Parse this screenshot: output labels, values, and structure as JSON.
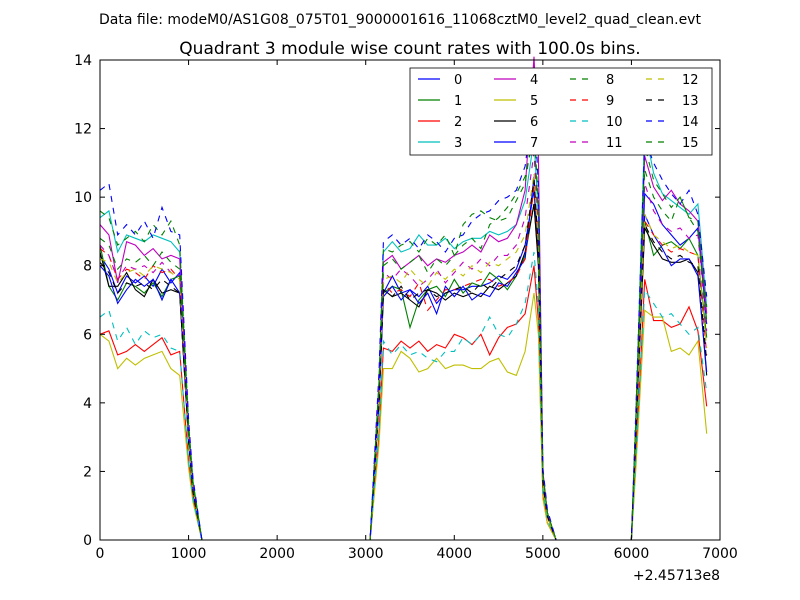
{
  "suptitle": "Data file: modeM0/AS1G08_075T01_9000001616_11068cztM0_level2_quad_clean.evt",
  "chart_data": {
    "type": "line",
    "title": "Quadrant 3 module wise count rates with 100.0s bins.",
    "xlabel": "",
    "ylabel": "",
    "x_offset_label": "+2.45713e8",
    "xlim": [
      0,
      7000
    ],
    "ylim": [
      0,
      14
    ],
    "x_ticks": [
      "0",
      "1000",
      "2000",
      "3000",
      "4000",
      "5000",
      "6000",
      "7000"
    ],
    "y_ticks": [
      "0",
      "2",
      "4",
      "6",
      "8",
      "10",
      "12",
      "14"
    ],
    "grid": false,
    "legend_position": "top-right",
    "x": [
      0,
      100,
      200,
      300,
      400,
      500,
      600,
      700,
      800,
      900,
      1000,
      1050,
      1150,
      3050,
      3150,
      3200,
      3300,
      3400,
      3500,
      3600,
      3700,
      3800,
      3900,
      4000,
      4100,
      4200,
      4300,
      4400,
      4500,
      4600,
      4700,
      4800,
      4900,
      4950,
      5000,
      5050,
      5150,
      6000,
      6050,
      6150,
      6250,
      6350,
      6450,
      6550,
      6650,
      6750,
      6850
    ],
    "series": [
      {
        "name": "0",
        "color": "#0000ff",
        "style": "solid",
        "values": [
          8.3,
          7.9,
          7.2,
          7.7,
          7.5,
          7.7,
          7.4,
          7.9,
          7.5,
          7.8,
          3.0,
          1.5,
          0,
          0,
          4.1,
          7.2,
          7.7,
          7.2,
          7.3,
          7.1,
          7.4,
          6.9,
          7.2,
          7.3,
          7.3,
          7.4,
          7.4,
          7.5,
          7.7,
          7.6,
          7.9,
          8.6,
          10.2,
          8.3,
          1.7,
          0.7,
          0,
          0,
          3.2,
          10.1,
          9.8,
          9.2,
          8.9,
          8.6,
          8.8,
          9.1,
          6.3
        ]
      },
      {
        "name": "1",
        "color": "#008000",
        "style": "solid",
        "values": [
          8.6,
          7.4,
          7.0,
          7.5,
          7.4,
          7.2,
          7.5,
          7.1,
          7.6,
          7.7,
          2.9,
          1.5,
          0,
          0,
          4.0,
          7.2,
          7.4,
          7.3,
          6.2,
          7.0,
          7.3,
          7.4,
          7.1,
          7.6,
          7.2,
          7.5,
          7.4,
          7.8,
          7.6,
          7.3,
          7.7,
          8.3,
          9.8,
          8.1,
          1.7,
          0.7,
          0,
          0,
          3.1,
          9.3,
          8.3,
          8.6,
          8.7,
          8.5,
          8.8,
          8.3,
          5.9
        ]
      },
      {
        "name": "2",
        "color": "#ff0000",
        "style": "solid",
        "values": [
          6.0,
          6.1,
          5.4,
          5.5,
          5.7,
          5.5,
          5.7,
          5.9,
          5.4,
          5.5,
          2.3,
          1.2,
          0,
          0,
          3.1,
          5.6,
          5.5,
          5.8,
          5.6,
          5.8,
          5.5,
          5.7,
          5.6,
          6.0,
          5.9,
          5.7,
          6.0,
          5.4,
          5.9,
          6.2,
          6.3,
          6.6,
          8.0,
          6.4,
          1.3,
          0.5,
          0,
          0,
          2.3,
          7.6,
          6.4,
          6.4,
          6.2,
          6.3,
          6.8,
          6.1,
          3.9
        ]
      },
      {
        "name": "3",
        "color": "#00bfbf",
        "style": "solid",
        "values": [
          9.4,
          9.6,
          8.4,
          8.9,
          8.8,
          8.7,
          8.9,
          8.8,
          8.7,
          8.4,
          3.3,
          1.7,
          0,
          0,
          4.6,
          8.4,
          8.7,
          8.4,
          8.5,
          8.9,
          8.6,
          8.6,
          8.8,
          8.5,
          8.7,
          8.8,
          8.8,
          9.0,
          8.9,
          9.0,
          9.2,
          9.9,
          11.7,
          9.4,
          1.9,
          0.8,
          0,
          0,
          3.6,
          12.0,
          10.7,
          10.1,
          9.9,
          9.7,
          9.5,
          9.8,
          6.8
        ]
      },
      {
        "name": "4",
        "color": "#bf00bf",
        "style": "solid",
        "values": [
          9.2,
          8.9,
          7.5,
          8.7,
          8.6,
          8.3,
          8.5,
          8.2,
          8.3,
          8.2,
          3.2,
          1.6,
          0,
          0,
          4.5,
          8.1,
          8.3,
          7.9,
          8.1,
          8.3,
          8.0,
          8.2,
          8.1,
          8.3,
          8.4,
          8.6,
          8.4,
          8.9,
          8.7,
          8.8,
          9.2,
          10.2,
          14.1,
          11.2,
          2.0,
          0.8,
          0,
          0,
          3.5,
          11.2,
          10.3,
          9.9,
          10.2,
          9.8,
          9.6,
          9.3,
          6.6
        ]
      },
      {
        "name": "5",
        "color": "#bfbf00",
        "style": "solid",
        "values": [
          6.0,
          5.8,
          5.0,
          5.3,
          5.1,
          5.3,
          5.4,
          5.5,
          5.0,
          4.8,
          2.1,
          1.1,
          0,
          0,
          2.8,
          5.0,
          5.0,
          5.5,
          5.3,
          4.9,
          5.0,
          5.3,
          5.0,
          5.1,
          5.1,
          5.0,
          5.0,
          5.2,
          5.3,
          4.9,
          4.8,
          5.5,
          7.2,
          6.0,
          1.2,
          0.5,
          0,
          0,
          2.1,
          6.7,
          6.5,
          6.5,
          5.5,
          5.6,
          5.4,
          5.8,
          3.1
        ]
      },
      {
        "name": "6",
        "color": "#000000",
        "style": "solid",
        "values": [
          8.4,
          7.4,
          7.4,
          7.8,
          7.3,
          7.1,
          7.6,
          7.2,
          7.3,
          7.2,
          2.9,
          1.4,
          0,
          0,
          4.0,
          7.3,
          7.1,
          7.2,
          7.0,
          6.8,
          7.3,
          7.2,
          7.0,
          7.2,
          7.1,
          7.2,
          7.1,
          7.4,
          7.3,
          7.5,
          7.7,
          8.4,
          9.8,
          8.0,
          1.6,
          0.7,
          0,
          0,
          3.0,
          9.1,
          8.6,
          8.2,
          8.1,
          8.1,
          8.2,
          7.8,
          4.8
        ]
      },
      {
        "name": "7",
        "color": "#0000ff",
        "style": "solid",
        "values": [
          8.0,
          7.7,
          6.9,
          7.3,
          7.6,
          7.4,
          7.6,
          7.0,
          7.6,
          7.2,
          2.9,
          1.5,
          0,
          0,
          4.0,
          7.1,
          7.4,
          7.0,
          7.3,
          6.9,
          7.2,
          6.6,
          7.4,
          7.1,
          7.4,
          7.0,
          7.2,
          7.1,
          7.5,
          7.4,
          7.8,
          8.2,
          10.6,
          8.5,
          1.7,
          0.7,
          0,
          0,
          3.1,
          9.5,
          8.9,
          8.5,
          8.0,
          8.2,
          8.2,
          7.7,
          4.9
        ]
      },
      {
        "name": "8",
        "color": "#008000",
        "style": "dashed",
        "values": [
          9.6,
          9.4,
          8.6,
          8.8,
          9.0,
          8.7,
          9.2,
          8.9,
          9.3,
          8.6,
          3.4,
          1.7,
          0,
          0,
          4.6,
          8.5,
          8.4,
          8.6,
          8.7,
          8.4,
          8.8,
          8.6,
          8.9,
          8.3,
          9.2,
          9.5,
          9.6,
          9.4,
          9.3,
          9.4,
          9.9,
          10.4,
          12.1,
          9.8,
          1.9,
          0.8,
          0,
          0,
          3.6,
          11.5,
          10.5,
          10.1,
          9.7,
          10.0,
          9.4,
          9.3,
          6.8
        ]
      },
      {
        "name": "9",
        "color": "#ff0000",
        "style": "dashed",
        "values": [
          8.5,
          8.3,
          7.6,
          7.9,
          7.8,
          7.6,
          8.0,
          7.8,
          7.9,
          7.6,
          3.0,
          1.5,
          0,
          0,
          4.1,
          7.5,
          7.2,
          7.3,
          7.1,
          7.5,
          6.7,
          7.0,
          7.3,
          7.3,
          7.4,
          7.5,
          7.6,
          7.6,
          7.4,
          7.5,
          7.7,
          8.2,
          10.3,
          8.4,
          1.7,
          0.7,
          0,
          0,
          3.1,
          9.3,
          8.9,
          8.6,
          8.4,
          8.5,
          8.4,
          8.3,
          5.4
        ]
      },
      {
        "name": "10",
        "color": "#00bfbf",
        "style": "dashed",
        "values": [
          6.5,
          6.7,
          5.8,
          6.2,
          5.7,
          6.1,
          5.9,
          6.0,
          5.6,
          5.5,
          2.3,
          1.2,
          0,
          0,
          3.2,
          5.8,
          5.4,
          5.7,
          5.4,
          5.5,
          5.3,
          5.2,
          5.5,
          5.5,
          5.9,
          5.7,
          6.0,
          6.5,
          6.0,
          5.9,
          6.3,
          6.9,
          8.4,
          6.8,
          1.4,
          0.6,
          0,
          0,
          2.4,
          7.3,
          6.9,
          6.5,
          6.6,
          6.3,
          6.0,
          6.2,
          4.3
        ]
      },
      {
        "name": "11",
        "color": "#bf00bf",
        "style": "dashed",
        "values": [
          8.6,
          8.3,
          7.6,
          8.0,
          7.9,
          8.0,
          7.8,
          8.1,
          7.8,
          7.7,
          3.1,
          1.5,
          0,
          0,
          4.3,
          7.8,
          7.6,
          7.9,
          7.7,
          7.4,
          7.6,
          7.9,
          7.5,
          7.8,
          8.1,
          7.9,
          8.2,
          8.0,
          8.3,
          8.3,
          8.6,
          9.4,
          11.3,
          9.0,
          1.8,
          0.8,
          0,
          0,
          3.4,
          10.4,
          9.6,
          9.2,
          9.0,
          9.1,
          8.8,
          8.9,
          6.1
        ]
      },
      {
        "name": "12",
        "color": "#bfbf00",
        "style": "dashed",
        "values": [
          8.2,
          8.1,
          7.5,
          7.8,
          7.9,
          7.7,
          8.0,
          7.9,
          7.8,
          7.6,
          3.0,
          1.5,
          0,
          0,
          4.2,
          7.6,
          7.7,
          7.5,
          7.9,
          7.6,
          7.4,
          7.8,
          7.6,
          7.9,
          7.7,
          8.0,
          7.8,
          8.1,
          8.0,
          8.2,
          8.4,
          8.9,
          10.7,
          8.6,
          1.7,
          0.7,
          0,
          0,
          3.2,
          9.5,
          8.9,
          8.7,
          8.5,
          8.6,
          8.4,
          8.3,
          5.6
        ]
      },
      {
        "name": "13",
        "color": "#000000",
        "style": "dashed",
        "values": [
          8.1,
          7.8,
          7.2,
          7.5,
          7.4,
          7.5,
          7.3,
          7.6,
          7.4,
          7.2,
          2.9,
          1.4,
          0,
          0,
          4.0,
          7.3,
          7.1,
          7.4,
          7.0,
          7.2,
          7.3,
          7.1,
          7.2,
          7.3,
          7.4,
          7.2,
          7.5,
          7.3,
          7.6,
          7.8,
          8.0,
          8.6,
          10.5,
          8.5,
          1.7,
          0.7,
          0,
          0,
          3.1,
          9.2,
          8.7,
          8.4,
          8.2,
          8.3,
          8.1,
          8.0,
          5.2
        ]
      },
      {
        "name": "14",
        "color": "#0000ff",
        "style": "dashed",
        "values": [
          10.2,
          10.4,
          8.9,
          9.2,
          8.9,
          9.3,
          8.8,
          9.7,
          9.0,
          8.9,
          3.5,
          1.8,
          0,
          0,
          4.9,
          8.7,
          8.9,
          8.6,
          8.8,
          8.5,
          8.9,
          8.7,
          8.4,
          8.8,
          8.9,
          9.3,
          9.5,
          9.6,
          9.9,
          10.0,
          10.2,
          10.9,
          12.9,
          10.3,
          2.1,
          0.9,
          0,
          0,
          3.8,
          11.7,
          11.0,
          10.5,
          10.1,
          9.8,
          10.2,
          9.5,
          7.1
        ]
      },
      {
        "name": "15",
        "color": "#008000",
        "style": "dashed",
        "values": [
          8.8,
          8.6,
          7.9,
          8.2,
          8.1,
          8.3,
          8.0,
          8.4,
          8.1,
          7.9,
          3.1,
          1.6,
          0,
          0,
          4.4,
          8.0,
          8.2,
          7.9,
          8.1,
          8.3,
          7.8,
          8.2,
          8.0,
          8.3,
          8.6,
          8.8,
          8.5,
          9.2,
          9.4,
          9.7,
          10.1,
          10.6,
          11.8,
          9.5,
          1.9,
          0.8,
          0,
          0,
          3.5,
          10.8,
          10.0,
          9.6,
          9.3,
          10.0,
          9.4,
          9.0,
          6.4
        ]
      }
    ]
  }
}
